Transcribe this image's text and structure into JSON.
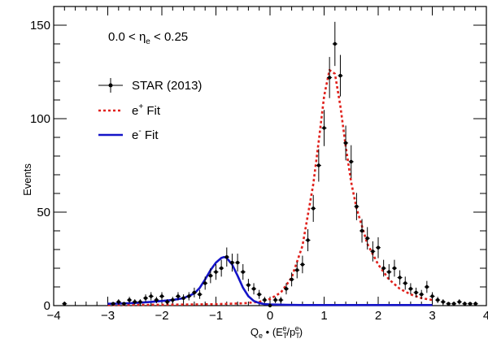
{
  "chart_data": {
    "type": "scatter",
    "xlabel": "Q_e · (E_T^e/p_T^e)",
    "xlabel_parts": {
      "main": "Q",
      "sub1": "e",
      "mid": " • (E",
      "sub2": "T",
      "sup2": "e",
      "slash": "/p",
      "sub3": "T",
      "sup3": "e",
      "close": ")"
    },
    "ylabel": "Events",
    "xlim": [
      -4,
      4
    ],
    "ylim": [
      0,
      160
    ],
    "xticks": [
      -4,
      -3,
      -2,
      -1,
      0,
      1,
      2,
      3,
      4
    ],
    "yticks": [
      0,
      50,
      100,
      150
    ],
    "grid": false,
    "legend_position": "top-left",
    "annotation": {
      "lhs": "0.0 < η",
      "sub": "e",
      "rhs": " < 0.25"
    },
    "legend": [
      {
        "label": "STAR (2013)",
        "style": "marker",
        "color": "#000000"
      },
      {
        "label_main": "e",
        "label_sup": "+",
        "label_rest": " Fit",
        "style": "dashed",
        "color": "#e0201b"
      },
      {
        "label_main": "e",
        "label_sup": "-",
        "label_rest": " Fit",
        "style": "solid",
        "color": "#1414c8"
      }
    ],
    "series": [
      {
        "name": "STAR (2013)",
        "type": "scatter",
        "color": "#000000",
        "x": [
          -3.8,
          -2.9,
          -2.8,
          -2.7,
          -2.6,
          -2.5,
          -2.4,
          -2.3,
          -2.2,
          -2.1,
          -2.0,
          -1.9,
          -1.8,
          -1.7,
          -1.6,
          -1.5,
          -1.4,
          -1.3,
          -1.2,
          -1.1,
          -1.0,
          -0.9,
          -0.8,
          -0.7,
          -0.6,
          -0.5,
          -0.4,
          -0.3,
          -0.2,
          -0.1,
          0.0,
          0.1,
          0.2,
          0.3,
          0.4,
          0.5,
          0.6,
          0.7,
          0.8,
          0.9,
          1.0,
          1.1,
          1.2,
          1.3,
          1.4,
          1.5,
          1.6,
          1.7,
          1.8,
          1.9,
          2.0,
          2.1,
          2.2,
          2.3,
          2.4,
          2.5,
          2.6,
          2.7,
          2.8,
          2.9,
          3.0,
          3.1,
          3.2,
          3.3,
          3.4,
          3.5,
          3.6,
          3.7,
          3.8
        ],
        "y": [
          1,
          1,
          2,
          1,
          3,
          2,
          2,
          4,
          5,
          3,
          5,
          2,
          3,
          5,
          4,
          5,
          7,
          6,
          12,
          16,
          18,
          20,
          26,
          23,
          23,
          18,
          11,
          9,
          6,
          3,
          0,
          3,
          3,
          9,
          14,
          19,
          22,
          35,
          52,
          75,
          95,
          122,
          140,
          123,
          87,
          77,
          53,
          40,
          36,
          29,
          31,
          20,
          18,
          20,
          15,
          12,
          9,
          7,
          6,
          10,
          5,
          3,
          2,
          1,
          1,
          2,
          1,
          1,
          1
        ],
        "err": [
          1,
          1,
          1.4,
          1,
          1.7,
          1.4,
          1.4,
          2,
          2.2,
          1.7,
          2.2,
          1.4,
          1.7,
          2.2,
          2,
          2.2,
          2.6,
          2.4,
          3.5,
          4,
          4.2,
          4.5,
          5.1,
          4.8,
          4.8,
          4.2,
          3.3,
          3,
          2.4,
          1.7,
          1,
          1.7,
          1.7,
          3,
          3.7,
          4.4,
          4.7,
          5.9,
          7.2,
          8.7,
          9.7,
          11,
          11.8,
          11.1,
          9.3,
          8.8,
          7.3,
          6.3,
          6,
          5.4,
          5.6,
          4.5,
          4.2,
          4.5,
          3.9,
          3.5,
          3,
          2.6,
          2.4,
          3.2,
          2.2,
          1.7,
          1.4,
          1,
          1,
          1.4,
          1,
          1,
          1
        ]
      },
      {
        "name": "e+ Fit",
        "type": "line",
        "style": "dashed",
        "color": "#e0201b",
        "x": [
          -3.0,
          -2.5,
          -2.0,
          -1.5,
          -1.0,
          -0.5,
          -0.2,
          0.0,
          0.2,
          0.4,
          0.6,
          0.8,
          0.9,
          1.0,
          1.1,
          1.2,
          1.3,
          1.4,
          1.5,
          1.6,
          1.8,
          2.0,
          2.2,
          2.4,
          2.6,
          2.8,
          3.0
        ],
        "y": [
          0.3,
          0.4,
          0.5,
          0.6,
          0.8,
          1.2,
          2,
          3.5,
          7,
          15,
          32,
          65,
          88,
          112,
          126,
          124,
          107,
          85,
          66,
          52,
          33,
          22,
          14,
          9,
          6,
          4,
          3
        ]
      },
      {
        "name": "e- Fit",
        "type": "line",
        "style": "solid",
        "color": "#1414c8",
        "x": [
          -3.0,
          -2.8,
          -2.6,
          -2.4,
          -2.2,
          -2.0,
          -1.8,
          -1.6,
          -1.4,
          -1.3,
          -1.2,
          -1.1,
          -1.0,
          -0.9,
          -0.85,
          -0.8,
          -0.7,
          -0.6,
          -0.5,
          -0.4,
          -0.3,
          -0.2,
          -0.1,
          0.0,
          0.3,
          0.6,
          1.0,
          1.5,
          2.0,
          2.5,
          3.0
        ],
        "y": [
          1,
          1.1,
          1.3,
          1.6,
          2,
          2.5,
          3,
          4,
          6.5,
          9.5,
          14,
          19,
          23,
          25.5,
          26,
          25.5,
          22,
          16,
          9.5,
          5,
          2.5,
          1.4,
          0.8,
          0.6,
          0.4,
          0.3,
          0.3,
          0.3,
          0.3,
          0.3,
          0.3
        ]
      }
    ]
  }
}
